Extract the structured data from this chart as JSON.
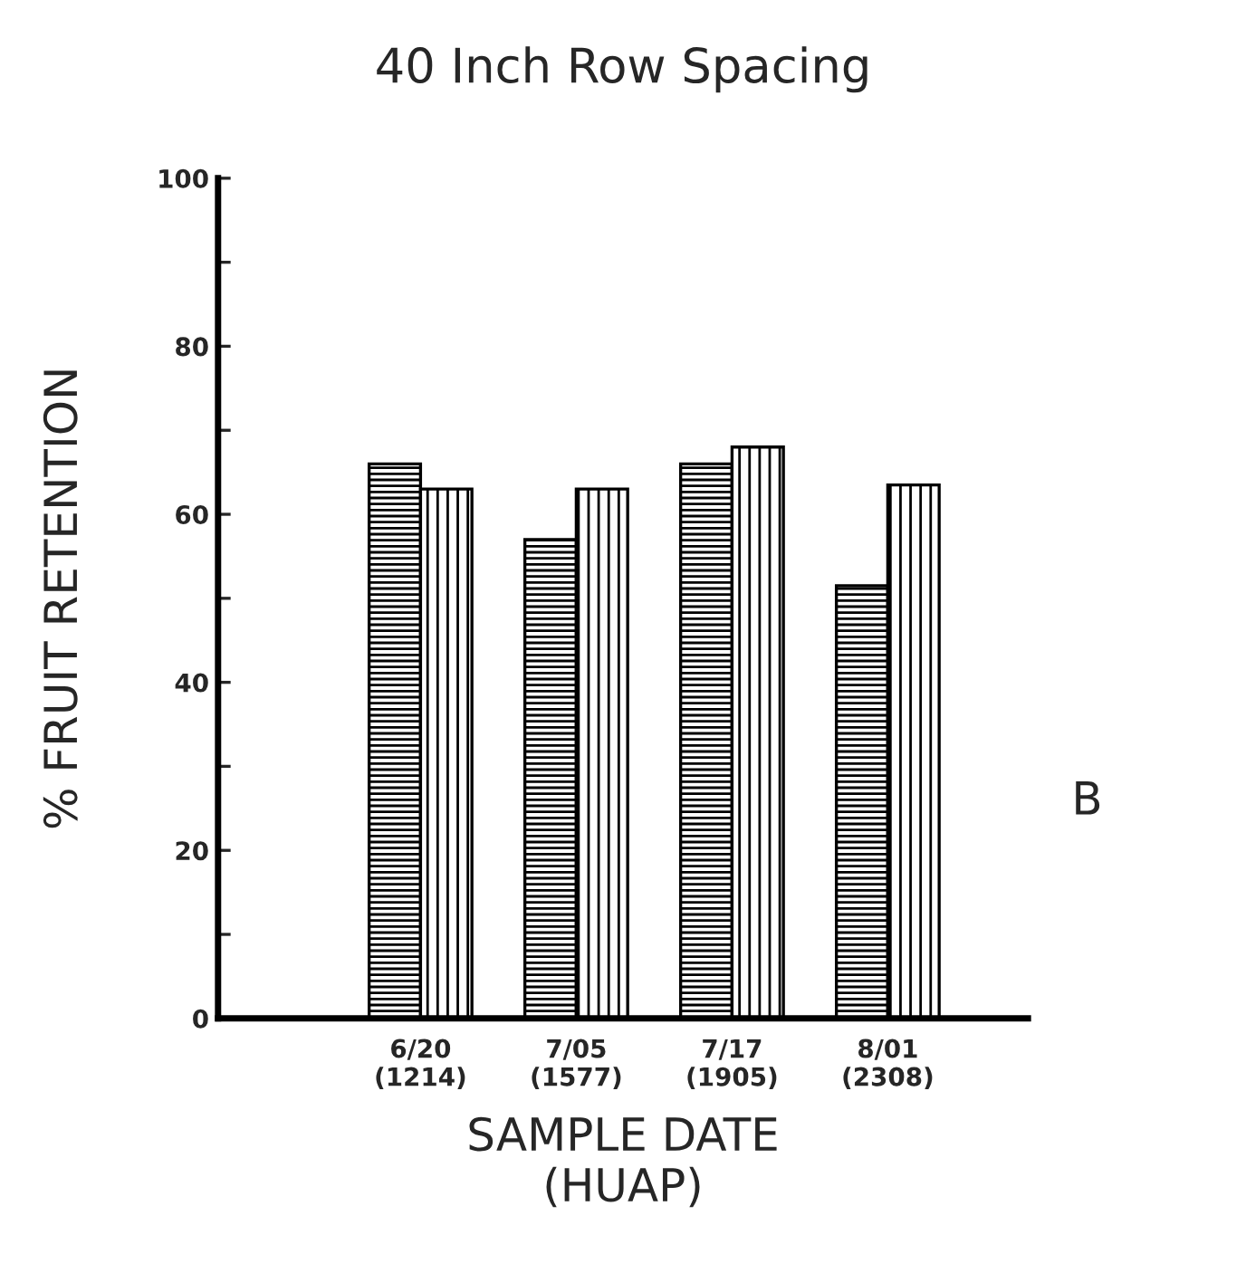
{
  "chart_data": {
    "type": "bar",
    "title": "40 Inch Row Spacing",
    "xlabel": "SAMPLE DATE\n(HUAP)",
    "ylabel": "% FRUIT RETENTION",
    "categories": [
      "6/20\n(1214)",
      "7/05\n(1577)",
      "7/17\n(1905)",
      "8/01\n(2308)"
    ],
    "series": [
      {
        "color": "#000000",
        "values": [
          66,
          57,
          66,
          51.5
        ]
      },
      {
        "color": "#000000",
        "values": [
          63,
          63,
          68,
          63.5
        ]
      }
    ],
    "ylim": [
      0,
      100
    ],
    "yticks": [
      0,
      {
        "value": 10,
        "label": null
      },
      20,
      {
        "value": 30,
        "label": null
      },
      40,
      {
        "value": 50,
        "label": null
      },
      60,
      {
        "value": 70,
        "label": null
      },
      80,
      {
        "value": 90,
        "label": null
      },
      100
    ],
    "grid": false,
    "legend": false,
    "annotations": [
      "B"
    ]
  }
}
